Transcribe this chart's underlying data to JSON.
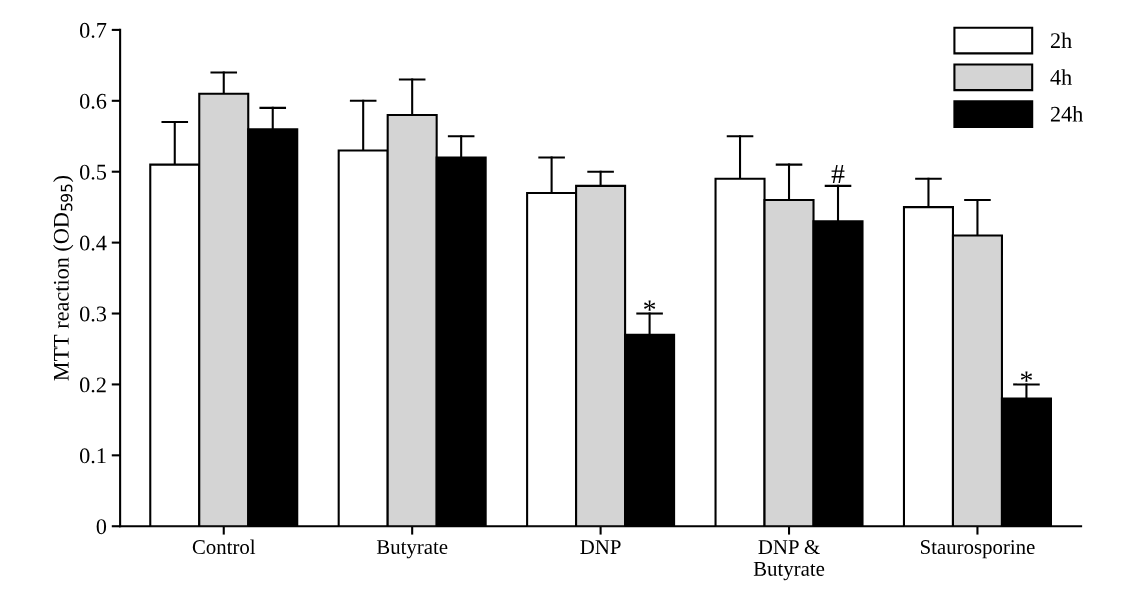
{
  "chart_data": {
    "type": "bar",
    "ylabel": "MTT reaction (OD$_{595}$)",
    "categories": [
      "Control",
      "Butyrate",
      "DNP",
      "DNP &\nButyrate",
      "Staurosporine"
    ],
    "series": [
      {
        "name": "2h",
        "color": "#ffffff",
        "values": [
          0.51,
          0.53,
          0.47,
          0.49,
          0.45
        ],
        "errors": [
          [
            0.51,
            0.57
          ],
          [
            0.53,
            0.6
          ],
          [
            0.47,
            0.52
          ],
          [
            0.49,
            0.55
          ],
          [
            0.45,
            0.49
          ]
        ]
      },
      {
        "name": "4h",
        "color": "#d4d4d4",
        "values": [
          0.61,
          0.58,
          0.48,
          0.46,
          0.41
        ],
        "errors": [
          [
            0.61,
            0.64
          ],
          [
            0.58,
            0.63
          ],
          [
            0.48,
            0.5
          ],
          [
            0.46,
            0.51
          ],
          [
            0.41,
            0.46
          ]
        ]
      },
      {
        "name": "24h",
        "color": "#000000",
        "values": [
          0.56,
          0.52,
          0.27,
          0.43,
          0.18
        ],
        "errors": [
          [
            0.56,
            0.59
          ],
          [
            0.52,
            0.55
          ],
          [
            0.27,
            0.3
          ],
          [
            0.43,
            0.48
          ],
          [
            0.18,
            0.2
          ]
        ]
      }
    ],
    "annotations": [
      "*",
      "#",
      "*"
    ],
    "ylim": [
      0,
      0.7
    ],
    "yticks": [
      0,
      0.1,
      0.2,
      0.3,
      0.4,
      0.5,
      0.6,
      0.7
    ],
    "grid": false,
    "legend": "top right"
  }
}
